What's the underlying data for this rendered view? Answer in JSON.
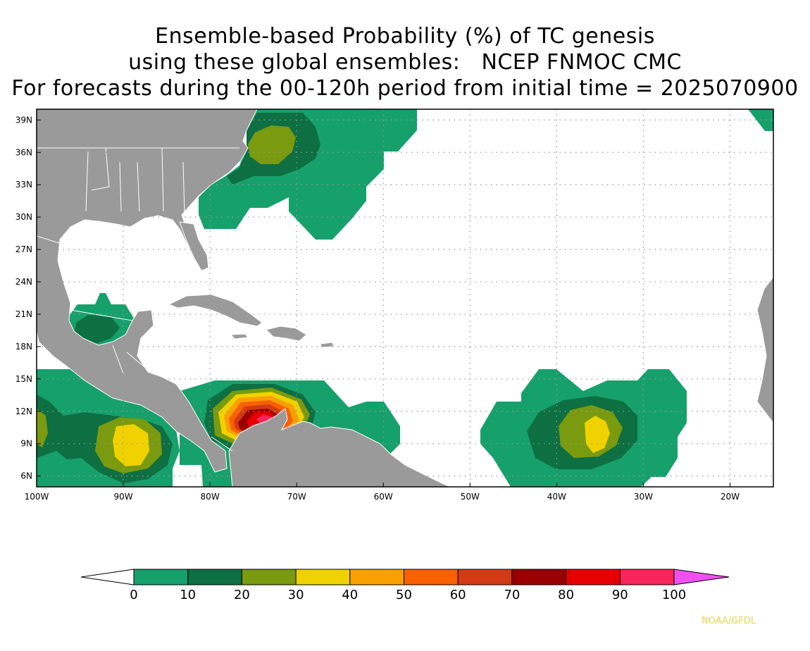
{
  "title": {
    "line1": "Ensemble-based Probability (%) of TC genesis",
    "line2": "using these global ensembles:   NCEP FNMOC CMC",
    "line3": "For forecasts during the 00-120h period from initial time = 2025070900"
  },
  "map": {
    "lat_labels": [
      "39N",
      "36N",
      "33N",
      "30N",
      "27N",
      "24N",
      "21N",
      "18N",
      "15N",
      "12N",
      "9N",
      "6N"
    ],
    "lon_labels": [
      "100W",
      "90W",
      "80W",
      "70W",
      "60W",
      "50W",
      "40W",
      "30W",
      "20W"
    ],
    "lon_range": [
      -100,
      -15
    ],
    "lat_range": [
      5,
      40
    ],
    "gridlines": "dotted",
    "colors": {
      "land": "#9a9a9a",
      "ocean": "#ffffff",
      "boundaries": "#ffffff"
    },
    "probability_features": [
      {
        "name": "US East Coast / Western Atlantic",
        "max_category": "20-30"
      },
      {
        "name": "Southern Gulf of Mexico / Yucatan",
        "max_category": "10-20"
      },
      {
        "name": "Eastern Pacific off Central America",
        "max_category": "30-40"
      },
      {
        "name": "Southwest Caribbean Sea",
        "max_category": "90-100"
      },
      {
        "name": "Central Tropical Atlantic",
        "max_category": "30-40"
      }
    ]
  },
  "colorbar": {
    "labels": [
      "0",
      "10",
      "20",
      "30",
      "40",
      "50",
      "60",
      "70",
      "80",
      "90",
      "100"
    ],
    "colors": [
      "#16a06c",
      "#0d6f42",
      "#7a9a10",
      "#f0d200",
      "#f8a000",
      "#f86000",
      "#d23a14",
      "#9a0000",
      "#e60000",
      "#f8245a"
    ],
    "below_color": "#ffffff",
    "above_color": "#f050f0"
  },
  "credit": "NOAA/GFDL"
}
